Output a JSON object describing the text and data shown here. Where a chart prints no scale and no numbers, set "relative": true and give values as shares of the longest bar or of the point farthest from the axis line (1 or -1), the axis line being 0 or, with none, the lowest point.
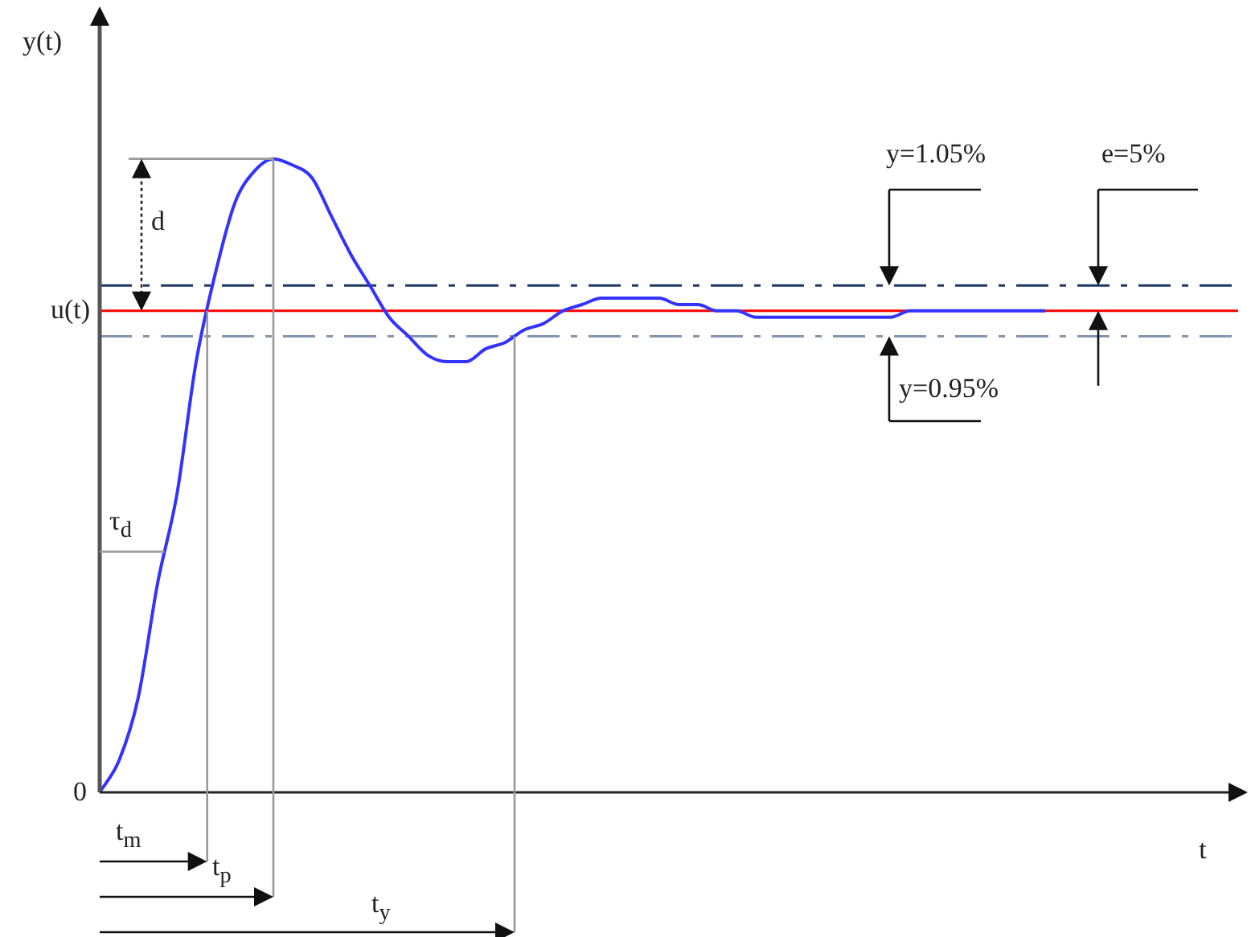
{
  "chart_data": {
    "type": "line",
    "relative": true,
    "xlabel": "t",
    "ylabel": "y(t)",
    "categories": [
      null,
      null,
      null,
      null,
      null,
      null,
      null,
      null,
      null,
      null,
      null,
      null,
      null,
      null,
      null,
      null,
      null,
      null,
      null,
      null,
      null,
      null,
      null,
      null,
      null,
      null,
      null,
      null,
      null,
      null,
      null,
      null,
      null,
      null,
      null,
      null,
      null,
      null,
      null,
      null,
      null,
      null,
      null,
      null,
      null,
      null,
      null,
      null,
      null,
      null,
      null,
      null,
      null,
      null,
      null,
      null,
      null,
      null,
      null,
      null
    ],
    "series": [
      {
        "color": "#3333ff",
        "values": [
          0,
          0.05,
          0.15,
          0.33,
          0.47,
          0.68,
          0.82,
          0.93,
          0.98,
          1,
          0.99,
          0.97,
          0.91,
          0.85,
          0.8,
          0.75,
          0.72,
          0.69,
          0.68,
          0.68,
          0.7,
          0.71,
          0.73,
          0.74,
          0.76,
          0.77,
          0.78,
          0.78,
          0.78,
          0.78,
          0.77,
          0.77,
          0.76,
          0.76,
          0.75,
          0.75,
          0.75,
          0.75,
          0.75,
          0.75,
          0.75,
          0.75,
          0.76,
          0.76,
          0.76,
          0.76,
          0.76,
          0.76,
          0.76,
          0.76,
          null,
          null,
          null,
          null,
          null,
          null,
          null,
          null,
          null,
          null
        ]
      }
    ],
    "ref_lines": [
      {
        "axis": "y",
        "value": 0.76,
        "label": "u(t)",
        "color": "#ff0000",
        "line_style": "solid"
      },
      {
        "axis": "y",
        "value": 0.8,
        "color": "#1f3864",
        "line_style": "dashed"
      },
      {
        "axis": "y",
        "value": 0.72,
        "color": "#8496b0",
        "line_style": "dashed"
      }
    ],
    "annotations": [
      "0",
      "d",
      "τ$_{d}$",
      "t$_{m}$",
      "t$_{p}$",
      "t$_{y}$",
      "e=5%",
      "y=1.05%",
      "y=0.95%"
    ],
    "marker": "none",
    "legend": false
  }
}
